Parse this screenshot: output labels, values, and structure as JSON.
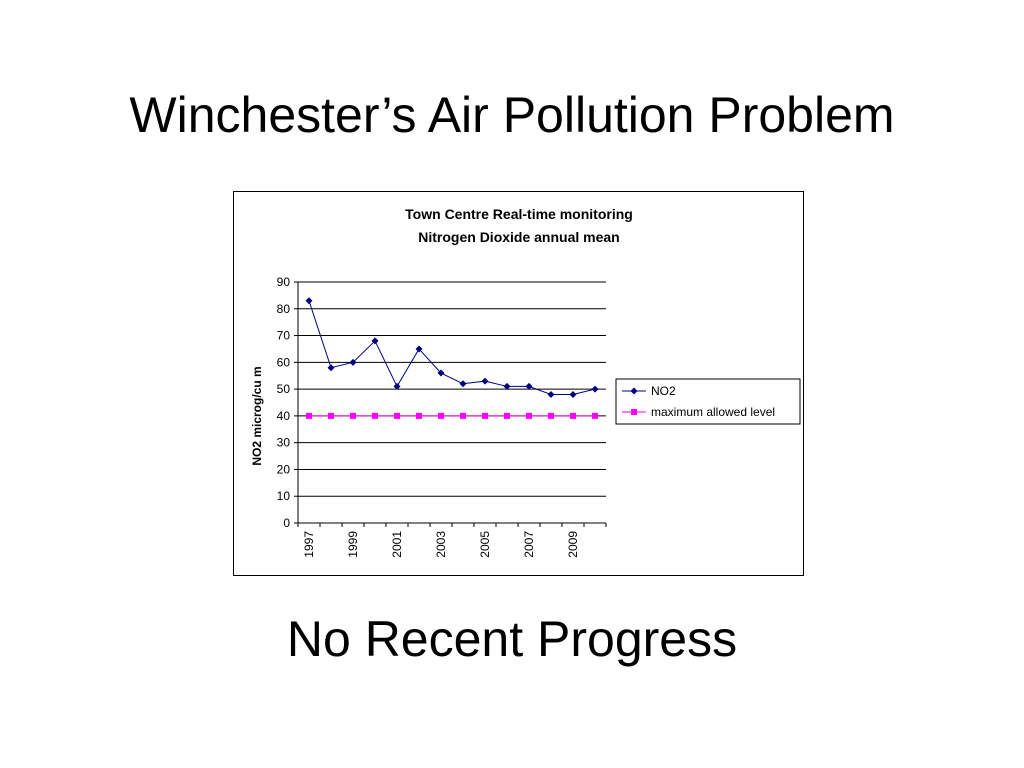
{
  "slide": {
    "title": "Winchester’s Air Pollution Problem",
    "subtitle": "No Recent Progress"
  },
  "chart_data": {
    "type": "line",
    "title_line1": "Town Centre Real-time monitoring",
    "title_line2": "Nitrogen Dioxide annual mean",
    "xlabel": "",
    "ylabel": "NO2 microg/cu m",
    "x": [
      1997,
      1998,
      1999,
      2000,
      2001,
      2002,
      2003,
      2004,
      2005,
      2006,
      2007,
      2008,
      2009,
      2010
    ],
    "x_tick_labels": [
      "1997",
      "1999",
      "2001",
      "2003",
      "2005",
      "2007",
      "2009"
    ],
    "ylim": [
      0,
      90
    ],
    "y_ticks": [
      0,
      10,
      20,
      30,
      40,
      50,
      60,
      70,
      80,
      90
    ],
    "grid": true,
    "legend_position": "right",
    "series": [
      {
        "name": "NO2",
        "color": "#000080",
        "marker": "diamond",
        "values": [
          83,
          58,
          60,
          68,
          51,
          65,
          56,
          52,
          53,
          51,
          51,
          48,
          48,
          50
        ]
      },
      {
        "name": "maximum allowed level",
        "color": "#ff00ff",
        "marker": "square",
        "values": [
          40,
          40,
          40,
          40,
          40,
          40,
          40,
          40,
          40,
          40,
          40,
          40,
          40,
          40
        ]
      }
    ]
  }
}
